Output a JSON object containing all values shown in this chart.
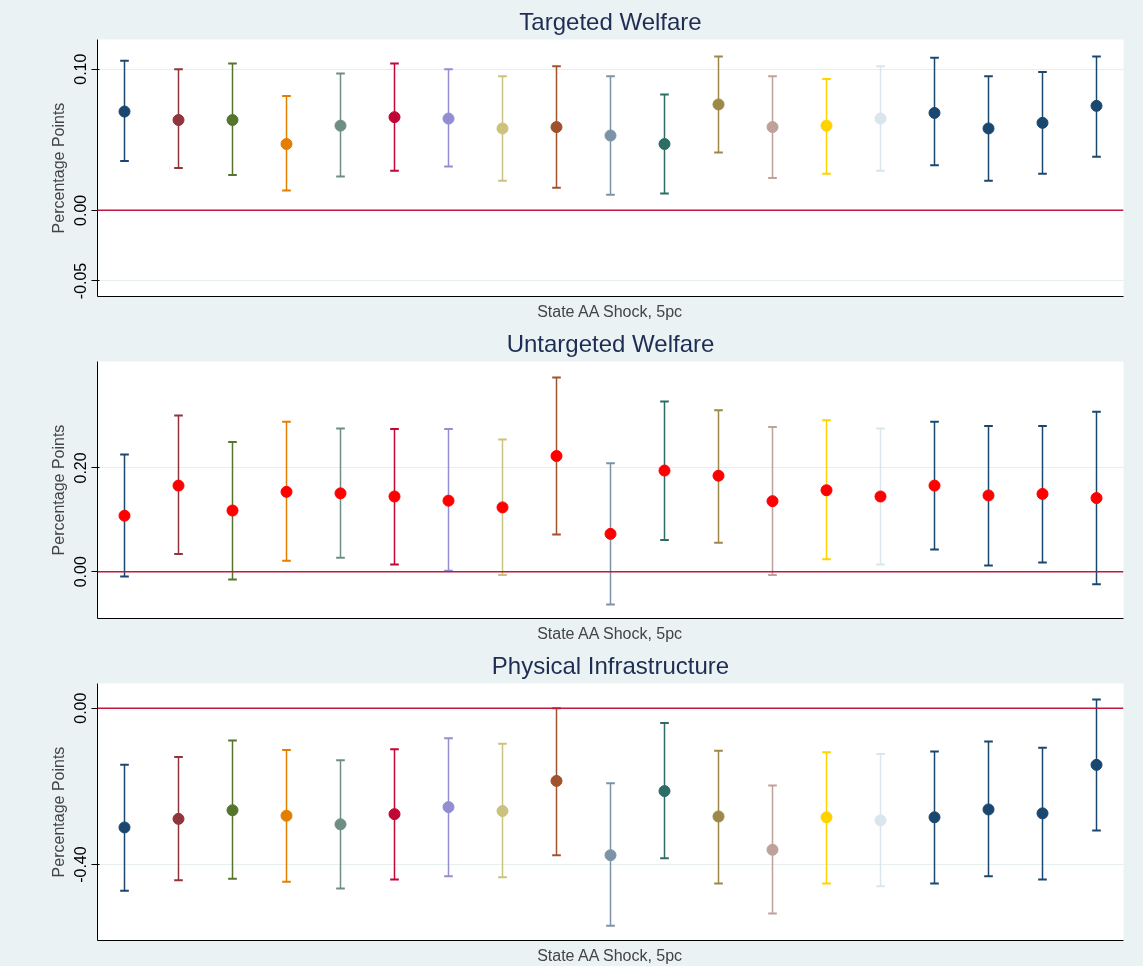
{
  "chart_data": [
    {
      "type": "scatter",
      "title": "Targeted Welfare",
      "xlabel": "State AA Shock, 5pc",
      "ylabel": "Percentage Points",
      "categories": [
        null,
        null,
        null,
        null,
        null,
        null,
        null,
        null,
        null,
        null,
        null,
        null,
        null,
        null,
        null,
        null,
        null,
        null,
        null
      ],
      "colors": [
        "#1a476f",
        "#90353b",
        "#55752f",
        "#e37e00",
        "#6e8e84",
        "#c10534",
        "#938dd2",
        "#cac27e",
        "#a0522d",
        "#7b92a8",
        "#2d6d66",
        "#9c8847",
        "#bfa19c",
        "#ffd200",
        "#d9e6eb",
        "#1a476f",
        "#1a476f",
        "#1a476f",
        "#1a476f"
      ],
      "values": [
        0.07,
        0.064,
        0.064,
        0.047,
        0.06,
        0.066,
        0.065,
        0.058,
        0.059,
        0.053,
        0.047,
        0.075,
        0.059,
        0.06,
        0.065,
        0.069,
        0.058,
        0.062,
        0.074
      ],
      "errors": [
        [
          0.035,
          0.106
        ],
        [
          0.03,
          0.1
        ],
        [
          0.025,
          0.104
        ],
        [
          0.014,
          0.081
        ],
        [
          0.024,
          0.097
        ],
        [
          0.028,
          0.104
        ],
        [
          0.031,
          0.1
        ],
        [
          0.021,
          0.095
        ],
        [
          0.016,
          0.102
        ],
        [
          0.011,
          0.095
        ],
        [
          0.012,
          0.082
        ],
        [
          0.041,
          0.109
        ],
        [
          0.023,
          0.095
        ],
        [
          0.026,
          0.093
        ],
        [
          0.028,
          0.102
        ],
        [
          0.032,
          0.108
        ],
        [
          0.021,
          0.095
        ],
        [
          0.026,
          0.098
        ],
        [
          0.038,
          0.109
        ]
      ],
      "ylim": [
        -0.061,
        0.121
      ],
      "yticks": [
        {
          "value": -0.05,
          "label": "-0.05"
        },
        {
          "value": 0,
          "label": "0.00"
        },
        {
          "value": 0.1,
          "label": "0.10"
        }
      ],
      "ref_lines": [
        {
          "axis": "y",
          "value": 0,
          "color": "#c0183c"
        }
      ],
      "grid": "y",
      "marker": "circle",
      "tick_labels": "y"
    },
    {
      "type": "scatter",
      "title": "Untargeted Welfare",
      "xlabel": "State AA Shock, 5pc",
      "ylabel": "Percentage Points",
      "categories": [
        null,
        null,
        null,
        null,
        null,
        null,
        null,
        null,
        null,
        null,
        null,
        null,
        null,
        null,
        null,
        null,
        null,
        null,
        null
      ],
      "colors": [
        "#1a476f",
        "#90353b",
        "#55752f",
        "#e37e00",
        "#6e8e84",
        "#c10534",
        "#938dd2",
        "#cac27e",
        "#a0522d",
        "#7b92a8",
        "#2d6d66",
        "#9c8847",
        "#bfa19c",
        "#ffd200",
        "#d9e6eb",
        "#1a476f",
        "#1a476f",
        "#1a476f",
        "#1a476f"
      ],
      "series": [
        {
          "color": "#ff0000",
          "values": [
            0.108,
            0.166,
            0.118,
            0.154,
            0.151,
            0.145,
            0.137,
            0.124,
            0.223,
            0.073,
            0.195,
            0.185,
            0.136,
            0.157,
            0.145,
            0.166,
            0.147,
            0.15,
            0.142
          ],
          "errors": [
            [
              -0.009,
              0.226
            ],
            [
              0.034,
              0.301
            ],
            [
              -0.015,
              0.25
            ],
            [
              0.021,
              0.289
            ],
            [
              0.027,
              0.276
            ],
            [
              0.014,
              0.275
            ],
            [
              0.002,
              0.275
            ],
            [
              -0.006,
              0.255
            ],
            [
              0.072,
              0.374
            ],
            [
              -0.063,
              0.209
            ],
            [
              0.061,
              0.328
            ],
            [
              0.056,
              0.311
            ],
            [
              -0.006,
              0.279
            ],
            [
              0.024,
              0.292
            ],
            [
              0.014,
              0.276
            ],
            [
              0.043,
              0.289
            ],
            [
              0.012,
              0.281
            ],
            [
              0.018,
              0.281
            ],
            [
              -0.024,
              0.308
            ]
          ]
        }
      ],
      "ylim": [
        -0.09,
        0.405
      ],
      "yticks": [
        {
          "value": 0,
          "label": "0.00"
        },
        {
          "value": 0.2,
          "label": "0.20"
        }
      ],
      "ref_lines": [
        {
          "axis": "y",
          "value": 0,
          "color": "#c0183c"
        }
      ],
      "grid": "y",
      "marker": "circle",
      "tick_labels": "y"
    },
    {
      "type": "scatter",
      "title": "Physical Infrastructure",
      "xlabel": "State AA Shock, 5pc",
      "ylabel": "Percentage Points",
      "categories": [
        null,
        null,
        null,
        null,
        null,
        null,
        null,
        null,
        null,
        null,
        null,
        null,
        null,
        null,
        null,
        null,
        null,
        null,
        null
      ],
      "colors": [
        "#1a476f",
        "#90353b",
        "#55752f",
        "#e37e00",
        "#6e8e84",
        "#c10534",
        "#938dd2",
        "#cac27e",
        "#a0522d",
        "#7b92a8",
        "#2d6d66",
        "#9c8847",
        "#bfa19c",
        "#ffd200",
        "#d9e6eb",
        "#1a476f",
        "#1a476f",
        "#1a476f",
        "#1a476f"
      ],
      "values": [
        -0.305,
        -0.283,
        -0.261,
        -0.275,
        -0.297,
        -0.271,
        -0.253,
        -0.263,
        -0.186,
        -0.376,
        -0.212,
        -0.277,
        -0.362,
        -0.279,
        -0.287,
        -0.279,
        -0.259,
        -0.269,
        -0.145
      ],
      "errors": [
        [
          -0.467,
          -0.145
        ],
        [
          -0.44,
          -0.125
        ],
        [
          -0.436,
          -0.083
        ],
        [
          -0.444,
          -0.107
        ],
        [
          -0.461,
          -0.133
        ],
        [
          -0.438,
          -0.105
        ],
        [
          -0.43,
          -0.077
        ],
        [
          -0.432,
          -0.091
        ],
        [
          -0.376,
          0.0
        ],
        [
          -0.556,
          -0.192
        ],
        [
          -0.384,
          -0.038
        ],
        [
          -0.448,
          -0.109
        ],
        [
          -0.525,
          -0.198
        ],
        [
          -0.448,
          -0.113
        ],
        [
          -0.455,
          -0.117
        ],
        [
          -0.448,
          -0.111
        ],
        [
          -0.43,
          -0.085
        ],
        [
          -0.438,
          -0.101
        ],
        [
          -0.313,
          0.022
        ]
      ],
      "ylim": [
        -0.594,
        0.063
      ],
      "yticks": [
        {
          "value": -0.4,
          "label": "-0.40"
        },
        {
          "value": 0,
          "label": "0.00"
        }
      ],
      "ref_lines": [
        {
          "axis": "y",
          "value": 0,
          "color": "#c0183c"
        }
      ],
      "grid": "y",
      "marker": "circle",
      "tick_labels": "y"
    }
  ]
}
